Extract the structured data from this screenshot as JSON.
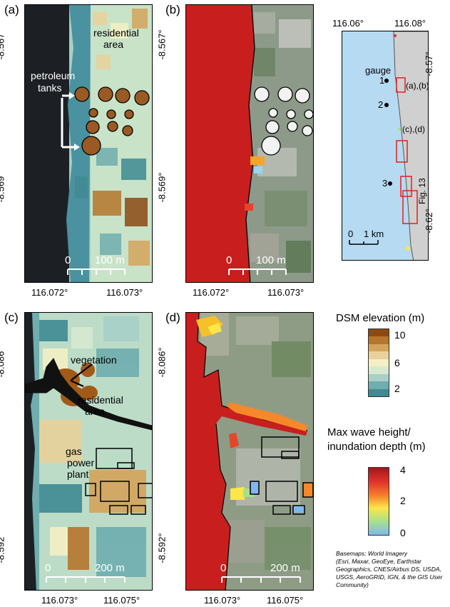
{
  "panels": {
    "a": {
      "label": "(a)",
      "x_ticks": [
        "116.072°",
        "116.073°"
      ],
      "y_ticks": [
        "-8.567°",
        "-8.569°"
      ],
      "annotations": {
        "residential": "residential",
        "area": "area",
        "petroleum": "petroleum",
        "tanks": "tanks"
      },
      "scale": {
        "zero": "0",
        "dist": "100 m"
      }
    },
    "b": {
      "label": "(b)",
      "x_ticks": [
        "116.072°",
        "116.073°"
      ],
      "y_ticks": [
        "-8.567°",
        "-8.569°"
      ],
      "scale": {
        "zero": "0",
        "dist": "100 m"
      }
    },
    "c": {
      "label": "(c)",
      "x_ticks": [
        "116.073°",
        "116.075°"
      ],
      "y_ticks": [
        "-8.086°",
        "-8.592°"
      ],
      "annotations": {
        "vegetation": "vegetation",
        "residential": "residential",
        "area": "area",
        "gas": "gas",
        "power": "power",
        "plant": "plant"
      },
      "scale": {
        "zero": "0",
        "dist": "200 m"
      }
    },
    "d": {
      "label": "(d)",
      "x_ticks": [
        "116.073°",
        "116.075°"
      ],
      "y_ticks": [
        "-8.086°",
        "-8.592°"
      ],
      "scale": {
        "zero": "0",
        "dist": "200 m"
      }
    },
    "overview": {
      "x_ticks": [
        "116.06°",
        "116.08°"
      ],
      "y_ticks": [
        "-8.57°",
        "-8.62°"
      ],
      "gauge_label": "gauge",
      "gauges": [
        "1",
        "2",
        "3"
      ],
      "box_labels": [
        "(a),(b)",
        "(c),(d)",
        "Fig. 13"
      ],
      "scale": {
        "zero": "0",
        "dist": "1 km"
      }
    }
  },
  "legend_dsm": {
    "title": "DSM elevation (m)",
    "ticks": [
      "10",
      "6",
      "2"
    ],
    "colors": [
      "#8c4a12",
      "#b6762c",
      "#d4a45b",
      "#e8d29a",
      "#f4f0c4",
      "#d7ead0",
      "#a9d0c8",
      "#6fadaf",
      "#3f8a93"
    ]
  },
  "legend_wave": {
    "title_line1": "Max wave height/",
    "title_line2": "inundation depth (m)",
    "ticks": [
      "4",
      "2",
      "0"
    ],
    "colors": [
      "#9e1a1a",
      "#e0302a",
      "#f47a2a",
      "#fde64a",
      "#a8e08a",
      "#7fb8f0"
    ]
  },
  "credit": {
    "line1": "Basemaps: World Imagery",
    "line2": "(Esri, Maxar, GeoEye, Earthstar",
    "line3": "Geographics, CNES/Airbus DS, USDA,",
    "line4": "USGS, AeroGRID, IGN, & the GIS User",
    "line5": "Community)"
  }
}
